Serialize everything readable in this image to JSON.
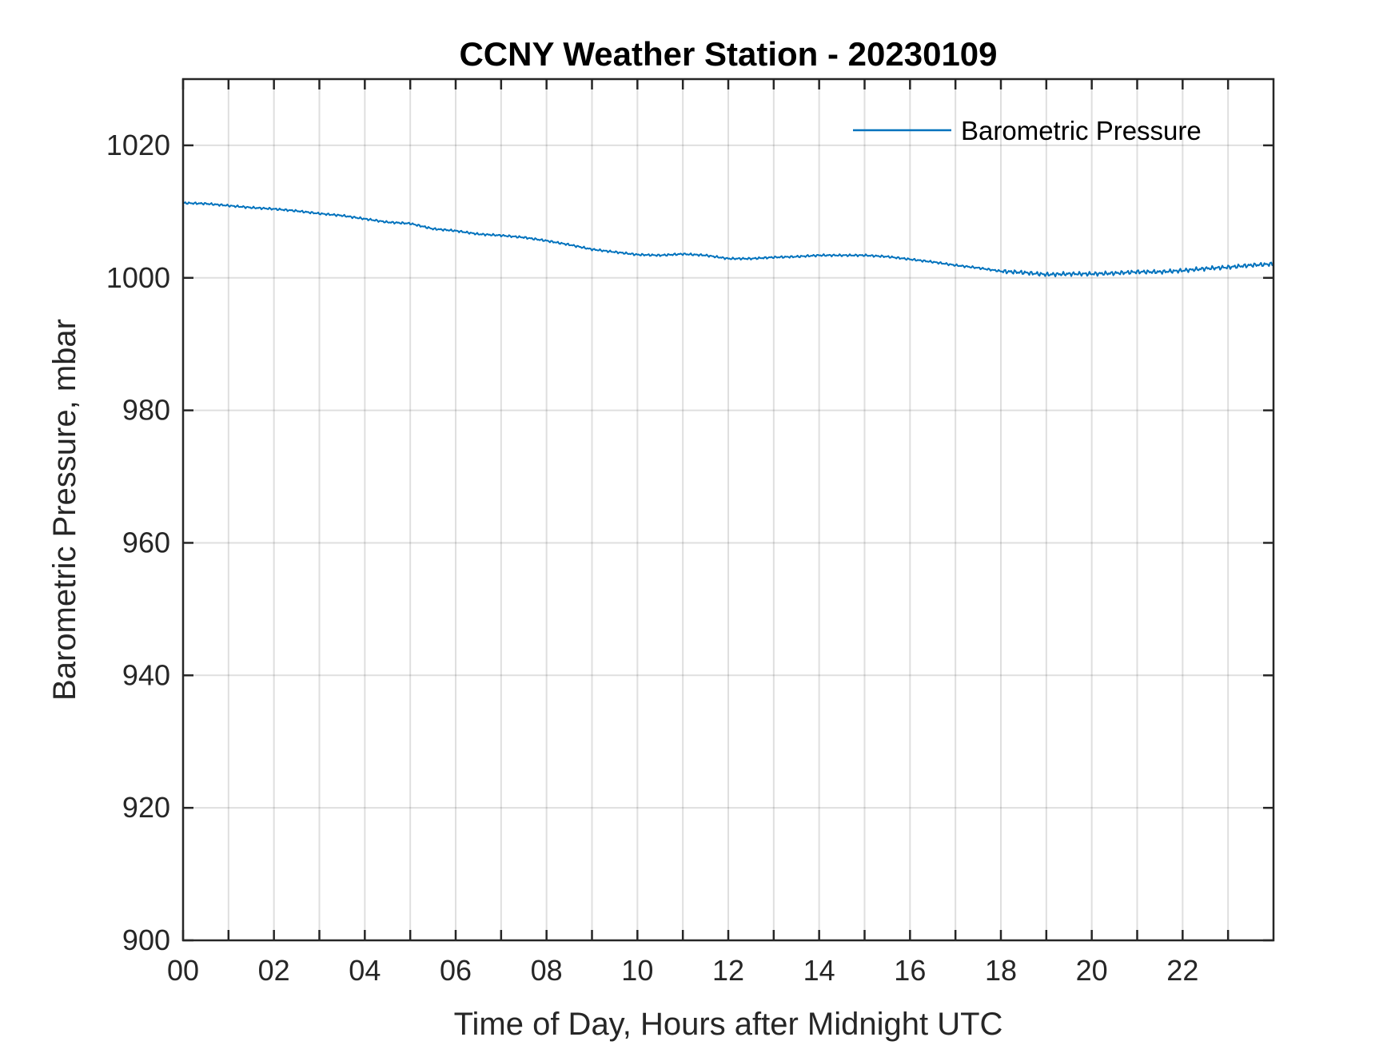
{
  "chart_data": {
    "type": "line",
    "title": "CCNY Weather Station - 20230109",
    "xlabel": "Time of Day, Hours after Midnight UTC",
    "ylabel": "Barometric Pressure, mbar",
    "xlim": [
      0,
      24
    ],
    "ylim": [
      900,
      1030
    ],
    "xticks": [
      0,
      2,
      4,
      6,
      8,
      10,
      12,
      14,
      16,
      18,
      20,
      22
    ],
    "xtick_labels": [
      "00",
      "02",
      "04",
      "06",
      "08",
      "10",
      "12",
      "14",
      "16",
      "18",
      "20",
      "22"
    ],
    "x_minor_ticks": [
      1,
      3,
      5,
      7,
      9,
      11,
      13,
      15,
      17,
      19,
      21,
      23
    ],
    "yticks": [
      900,
      920,
      940,
      960,
      980,
      1000,
      1020
    ],
    "ytick_labels": [
      "900",
      "920",
      "940",
      "960",
      "980",
      "1000",
      "1020"
    ],
    "grid": true,
    "legend_position": "top-right",
    "series": [
      {
        "name": "Barometric Pressure",
        "color": "#0072BD",
        "x": [
          0,
          0.5,
          1,
          1.5,
          2,
          2.5,
          3,
          3.5,
          4,
          4.5,
          5,
          5.5,
          6,
          6.5,
          7,
          7.5,
          8,
          8.5,
          9,
          9.5,
          10,
          10.5,
          11,
          11.5,
          12,
          12.5,
          13,
          13.5,
          14,
          14.5,
          15,
          15.5,
          16,
          16.5,
          17,
          17.5,
          18,
          18.5,
          19,
          19.5,
          20,
          20.5,
          21,
          21.5,
          22,
          22.5,
          23,
          23.5,
          24
        ],
        "values": [
          1011.3,
          1011.2,
          1010.9,
          1010.6,
          1010.4,
          1010.1,
          1009.7,
          1009.4,
          1008.9,
          1008.4,
          1008.2,
          1007.4,
          1007.1,
          1006.6,
          1006.4,
          1006.1,
          1005.6,
          1005.0,
          1004.3,
          1003.9,
          1003.5,
          1003.4,
          1003.6,
          1003.4,
          1002.9,
          1002.9,
          1003.1,
          1003.2,
          1003.4,
          1003.4,
          1003.4,
          1003.2,
          1002.8,
          1002.4,
          1001.9,
          1001.5,
          1001.0,
          1000.8,
          1000.5,
          1000.6,
          1000.6,
          1000.7,
          1000.9,
          1000.9,
          1001.1,
          1001.4,
          1001.6,
          1001.9,
          1002.1
        ]
      }
    ]
  }
}
